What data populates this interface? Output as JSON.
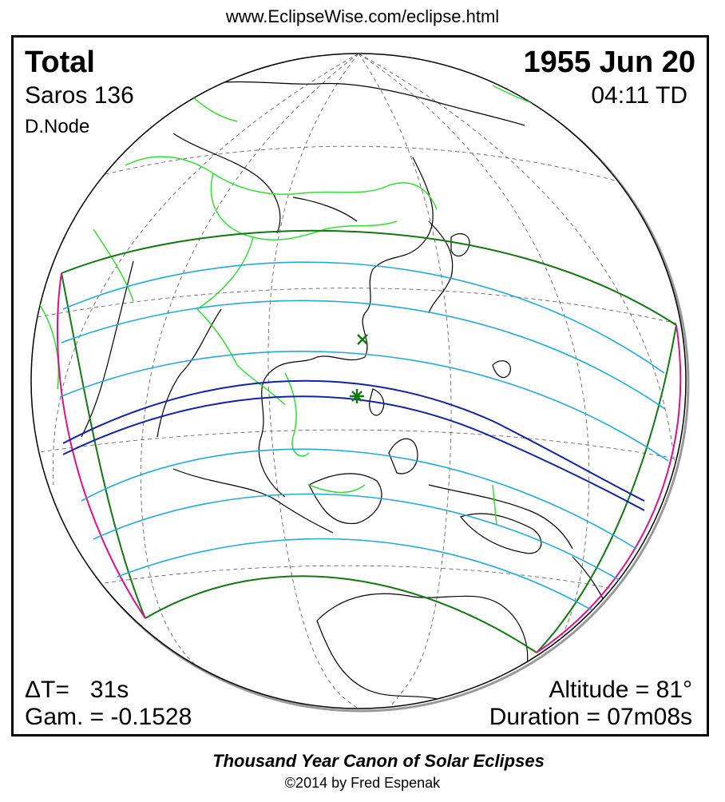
{
  "header": {
    "url": "www.EclipseWise.com/eclipse.html"
  },
  "eclipse": {
    "type": "Total",
    "saros": "Saros 136",
    "node": "D.Node",
    "date": "1955 Jun 20",
    "time": "04:11 TD",
    "delta_t_label": "ΔT=",
    "delta_t_value": "31s",
    "gamma": "Gam. = -0.1528",
    "altitude": "Altitude = 81°",
    "duration": "Duration = 07m08s"
  },
  "footer": {
    "canon_title": "Thousand Year Canon of Solar Eclipses",
    "copyright": "©2014 by Fred Espenak"
  },
  "colors": {
    "coastline": "#000000",
    "borders": "#33dd33",
    "penumbral_limits": "#117711",
    "partial_lines": "#22aadd",
    "central_path": "#1122aa",
    "rise_set_curves": "#dd1188",
    "greatest_eclipse": "#117711"
  },
  "markers": {
    "greatest_eclipse_icon": "asterisk-icon",
    "greatest_duration_icon": "x-mark-icon"
  }
}
